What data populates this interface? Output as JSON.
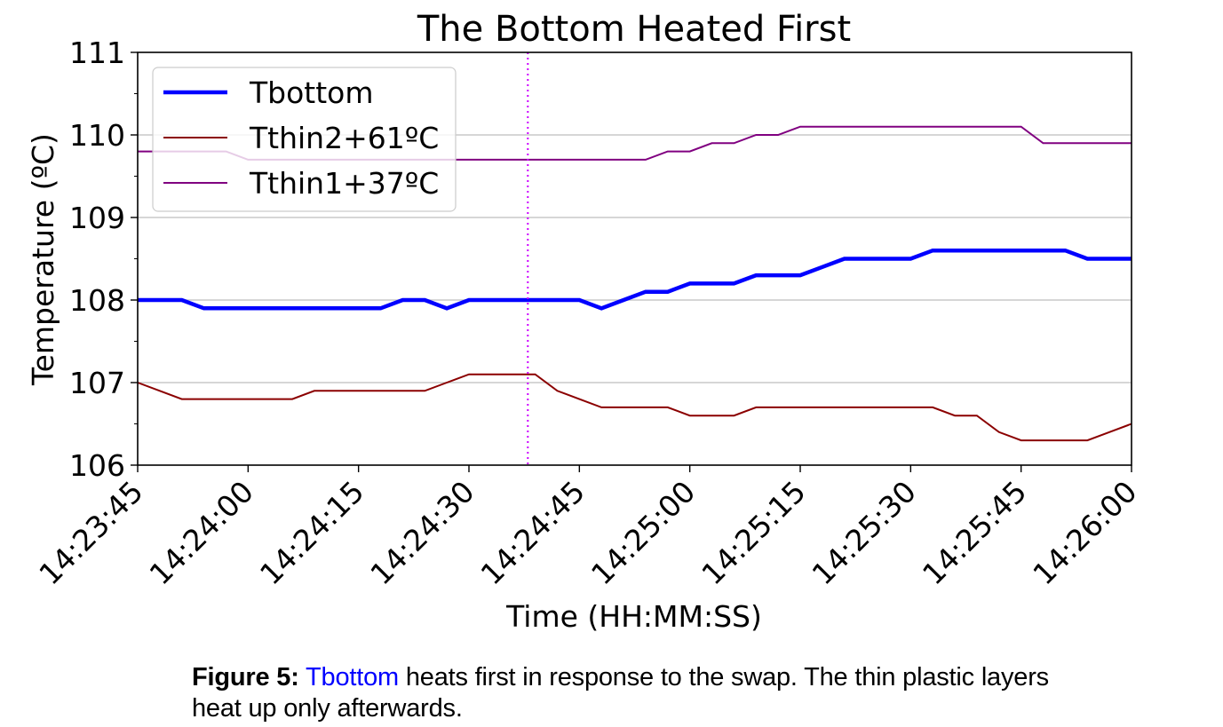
{
  "chart_data": {
    "type": "line",
    "title": "The Bottom Heated First",
    "xlabel": "Time (HH:MM:SS)",
    "ylabel": "Temperature (ºC)",
    "ylim": [
      106,
      111
    ],
    "yticks": [
      "106",
      "107",
      "108",
      "109",
      "110",
      "111"
    ],
    "ytick_values": [
      106,
      107,
      108,
      109,
      110,
      111
    ],
    "yminor_step": 0.5,
    "xlim_seconds": [
      0,
      135
    ],
    "xticks": [
      "14:23:45",
      "14:24:00",
      "14:24:15",
      "14:24:30",
      "14:24:45",
      "14:25:00",
      "14:25:15",
      "14:25:30",
      "14:25:45",
      "14:26:00"
    ],
    "xtick_seconds": [
      0,
      15,
      30,
      45,
      60,
      75,
      90,
      105,
      120,
      135
    ],
    "x_origin_time": "14:23:45",
    "grid": "horizontal",
    "legend_placement": "upper-left",
    "x_seconds": [
      0,
      3,
      6,
      9,
      12,
      15,
      18,
      21,
      24,
      27,
      30,
      33,
      36,
      39,
      42,
      45,
      48,
      51,
      54,
      57,
      60,
      63,
      66,
      69,
      72,
      75,
      78,
      81,
      84,
      87,
      90,
      93,
      96,
      99,
      102,
      105,
      108,
      111,
      114,
      117,
      120,
      123,
      126,
      129,
      132,
      135
    ],
    "series": [
      {
        "name": "Tbottom",
        "color": "#0000ff",
        "width": "thick",
        "values": [
          108.0,
          108.0,
          108.0,
          107.9,
          107.9,
          107.9,
          107.9,
          107.9,
          107.9,
          107.9,
          107.9,
          107.9,
          108.0,
          108.0,
          107.9,
          108.0,
          108.0,
          108.0,
          108.0,
          108.0,
          108.0,
          107.9,
          108.0,
          108.1,
          108.1,
          108.2,
          108.2,
          108.2,
          108.3,
          108.3,
          108.3,
          108.4,
          108.5,
          108.5,
          108.5,
          108.5,
          108.6,
          108.6,
          108.6,
          108.6,
          108.6,
          108.6,
          108.6,
          108.5,
          108.5,
          108.5
        ]
      },
      {
        "name": "Tthin2+61ºC",
        "color": "#8b0000",
        "width": "thin",
        "values": [
          107.0,
          106.9,
          106.8,
          106.8,
          106.8,
          106.8,
          106.8,
          106.8,
          106.9,
          106.9,
          106.9,
          106.9,
          106.9,
          106.9,
          107.0,
          107.1,
          107.1,
          107.1,
          107.1,
          106.9,
          106.8,
          106.7,
          106.7,
          106.7,
          106.7,
          106.6,
          106.6,
          106.6,
          106.7,
          106.7,
          106.7,
          106.7,
          106.7,
          106.7,
          106.7,
          106.7,
          106.7,
          106.6,
          106.6,
          106.4,
          106.3,
          106.3,
          106.3,
          106.3,
          106.4,
          106.5
        ]
      },
      {
        "name": "Tthin1+37ºC",
        "color": "#800080",
        "width": "thin",
        "values": [
          109.8,
          109.8,
          109.8,
          109.8,
          109.8,
          109.7,
          109.7,
          109.7,
          109.7,
          109.7,
          109.7,
          109.7,
          109.7,
          109.7,
          109.7,
          109.7,
          109.7,
          109.7,
          109.7,
          109.7,
          109.7,
          109.7,
          109.7,
          109.7,
          109.8,
          109.8,
          109.9,
          109.9,
          110.0,
          110.0,
          110.1,
          110.1,
          110.1,
          110.1,
          110.1,
          110.1,
          110.1,
          110.1,
          110.1,
          110.1,
          110.1,
          109.9,
          109.9,
          109.9,
          109.9,
          109.9
        ]
      }
    ],
    "vline": {
      "x_seconds": 53,
      "color": "#cc00ff",
      "style": "dotted"
    }
  },
  "caption": {
    "label": "Figure 5:",
    "highlight": "Tbottom",
    "text": " heats first in response to the swap. The thin plastic layers heat up only afterwards.",
    "highlight_color": "#0000ff"
  }
}
